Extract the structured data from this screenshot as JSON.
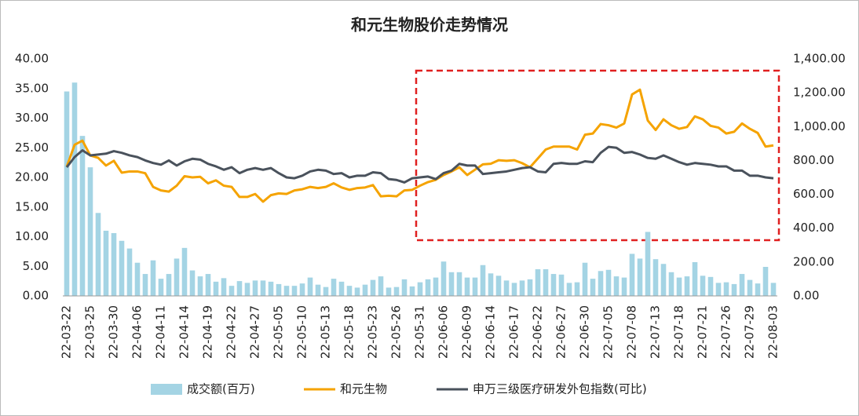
{
  "chart_data": {
    "type": "combo",
    "title": "和元生物股价走势情况",
    "categories": [
      "22-03-22",
      null,
      null,
      "22-03-25",
      null,
      null,
      "22-03-30",
      null,
      null,
      "22-04-06",
      null,
      null,
      "22-04-11",
      null,
      null,
      "22-04-14",
      null,
      null,
      "22-04-19",
      null,
      null,
      "22-04-22",
      null,
      null,
      "22-04-27",
      null,
      null,
      "22-05-05",
      null,
      null,
      "22-05-10",
      null,
      null,
      "22-05-13",
      null,
      null,
      "22-05-18",
      null,
      null,
      "22-05-23",
      null,
      null,
      "22-05-26",
      null,
      null,
      "22-05-31",
      null,
      null,
      "22-06-06",
      null,
      null,
      "22-06-09",
      null,
      null,
      "22-06-14",
      null,
      null,
      "22-06-17",
      null,
      null,
      "22-06-22",
      null,
      null,
      "22-06-27",
      null,
      null,
      "22-06-30",
      null,
      null,
      "22-07-05",
      null,
      null,
      "22-07-08",
      null,
      null,
      "22-07-13",
      null,
      null,
      "22-07-18",
      null,
      null,
      "22-07-21",
      null,
      null,
      "22-07-26",
      null,
      null,
      "22-07-29",
      null,
      null,
      "22-08-03"
    ],
    "series": [
      {
        "name": "成交额(百万)",
        "type": "bar",
        "color": "#a4d4e4",
        "axis": "y",
        "values": [
          34.5,
          36,
          27,
          21.7,
          14,
          11,
          10.6,
          9.3,
          8,
          5.6,
          3.7,
          6,
          2.9,
          3.7,
          6.3,
          8.1,
          4.3,
          3.3,
          3.7,
          2.4,
          3,
          1.7,
          2.5,
          2.2,
          2.6,
          2.6,
          2.4,
          2.0,
          1.7,
          1.7,
          2.1,
          3.1,
          1.9,
          1.5,
          2.9,
          2.4,
          1.7,
          1.4,
          1.9,
          2.7,
          3.3,
          1.4,
          1.5,
          2.8,
          1.6,
          2.3,
          2.8,
          3.1,
          5.8,
          4,
          4,
          3.1,
          3.1,
          5.2,
          3.8,
          3.4,
          2.6,
          2.2,
          2.6,
          2.8,
          4.5,
          4.5,
          3.7,
          3.6,
          2.2,
          2.3,
          5.6,
          2.9,
          4.2,
          4.4,
          3.3,
          3.1,
          7.1,
          6.3,
          10.8,
          6.2,
          5.4,
          4,
          3.1,
          3.3,
          5.7,
          3.4,
          3.2,
          2.2,
          2.3,
          2,
          3.7,
          2.7,
          2.1,
          4.9,
          2.2
        ]
      },
      {
        "name": "和元生物",
        "type": "line",
        "color": "#f5a300",
        "axis": "y",
        "values": [
          21.8,
          25.5,
          26.2,
          23.7,
          23.3,
          22,
          22.8,
          20.8,
          21,
          21,
          20.7,
          18.4,
          17.8,
          17.6,
          18.6,
          20.2,
          20,
          20.1,
          19,
          19.5,
          18.6,
          18.4,
          16.7,
          16.7,
          17.2,
          15.9,
          17,
          17.3,
          17.2,
          17.8,
          18,
          18.4,
          18.2,
          18.4,
          19,
          18.3,
          17.9,
          18.2,
          18.3,
          18.7,
          16.8,
          16.9,
          16.8,
          17.8,
          17.9,
          18.6,
          19.2,
          19.6,
          20.4,
          21,
          21.7,
          20.4,
          21.3,
          22.2,
          22.3,
          22.9,
          22.8,
          22.9,
          22.4,
          21.7,
          23.2,
          24.7,
          25.2,
          25.2,
          25.2,
          24.7,
          27.2,
          27.4,
          29,
          28.8,
          28.4,
          29.1,
          34,
          34.8,
          29.6,
          28,
          29.8,
          28.8,
          28.2,
          28.5,
          30.3,
          29.8,
          28.7,
          28.4,
          27.4,
          27.7,
          29.1,
          28.2,
          27.5,
          25.2,
          25.4
        ]
      },
      {
        "name": "申万三级医疗研发外包指数(可比)",
        "type": "line",
        "color": "#4a525c",
        "axis": "y2",
        "values": [
          760,
          820,
          860,
          830,
          835,
          840,
          855,
          845,
          830,
          820,
          800,
          785,
          775,
          800,
          770,
          795,
          810,
          805,
          780,
          765,
          745,
          760,
          725,
          745,
          755,
          745,
          755,
          725,
          700,
          695,
          710,
          735,
          745,
          740,
          720,
          725,
          700,
          710,
          710,
          730,
          725,
          690,
          685,
          670,
          695,
          700,
          705,
          690,
          725,
          740,
          780,
          770,
          770,
          720,
          725,
          730,
          735,
          745,
          755,
          760,
          735,
          730,
          780,
          785,
          780,
          780,
          795,
          790,
          845,
          880,
          875,
          845,
          850,
          835,
          815,
          810,
          830,
          810,
          790,
          775,
          785,
          780,
          775,
          765,
          765,
          740,
          740,
          710,
          710,
          700,
          695
        ]
      }
    ],
    "ylim": [
      0,
      40
    ],
    "yticks": [
      {
        "value": 0,
        "label": "0.00"
      },
      {
        "value": 5,
        "label": "5.00"
      },
      {
        "value": 10,
        "label": "10.00"
      },
      {
        "value": 15,
        "label": "15.00"
      },
      {
        "value": 20,
        "label": "20.00"
      },
      {
        "value": 25,
        "label": "25.00"
      },
      {
        "value": 30,
        "label": "30.00"
      },
      {
        "value": 35,
        "label": "35.00"
      },
      {
        "value": 40,
        "label": "40.00"
      }
    ],
    "y2lim": [
      0,
      1400
    ],
    "y2ticks": [
      {
        "value": 0,
        "label": "0.00"
      },
      {
        "value": 200,
        "label": "200.00"
      },
      {
        "value": 400,
        "label": "400.00"
      },
      {
        "value": 600,
        "label": "600.00"
      },
      {
        "value": 800,
        "label": "800.00"
      },
      {
        "value": 1000,
        "label": "1,000.00"
      },
      {
        "value": 1200,
        "label": "1,200.00"
      },
      {
        "value": 1400,
        "label": "1,400.00"
      }
    ],
    "legend": "bottom"
  }
}
